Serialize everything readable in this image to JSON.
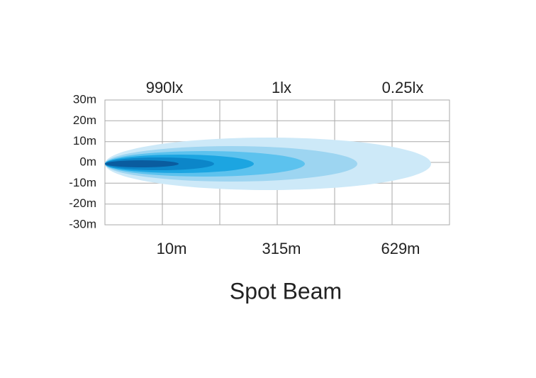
{
  "y_axis": {
    "labels": [
      "30m",
      "20m",
      "10m",
      "0m",
      "-10m",
      "-20m",
      "-30m"
    ]
  },
  "top_labels": [
    "990lx",
    "1lx",
    "0.25lx"
  ],
  "bottom_labels": [
    "10m",
    "315m",
    "629m"
  ],
  "title": "Spot Beam"
}
